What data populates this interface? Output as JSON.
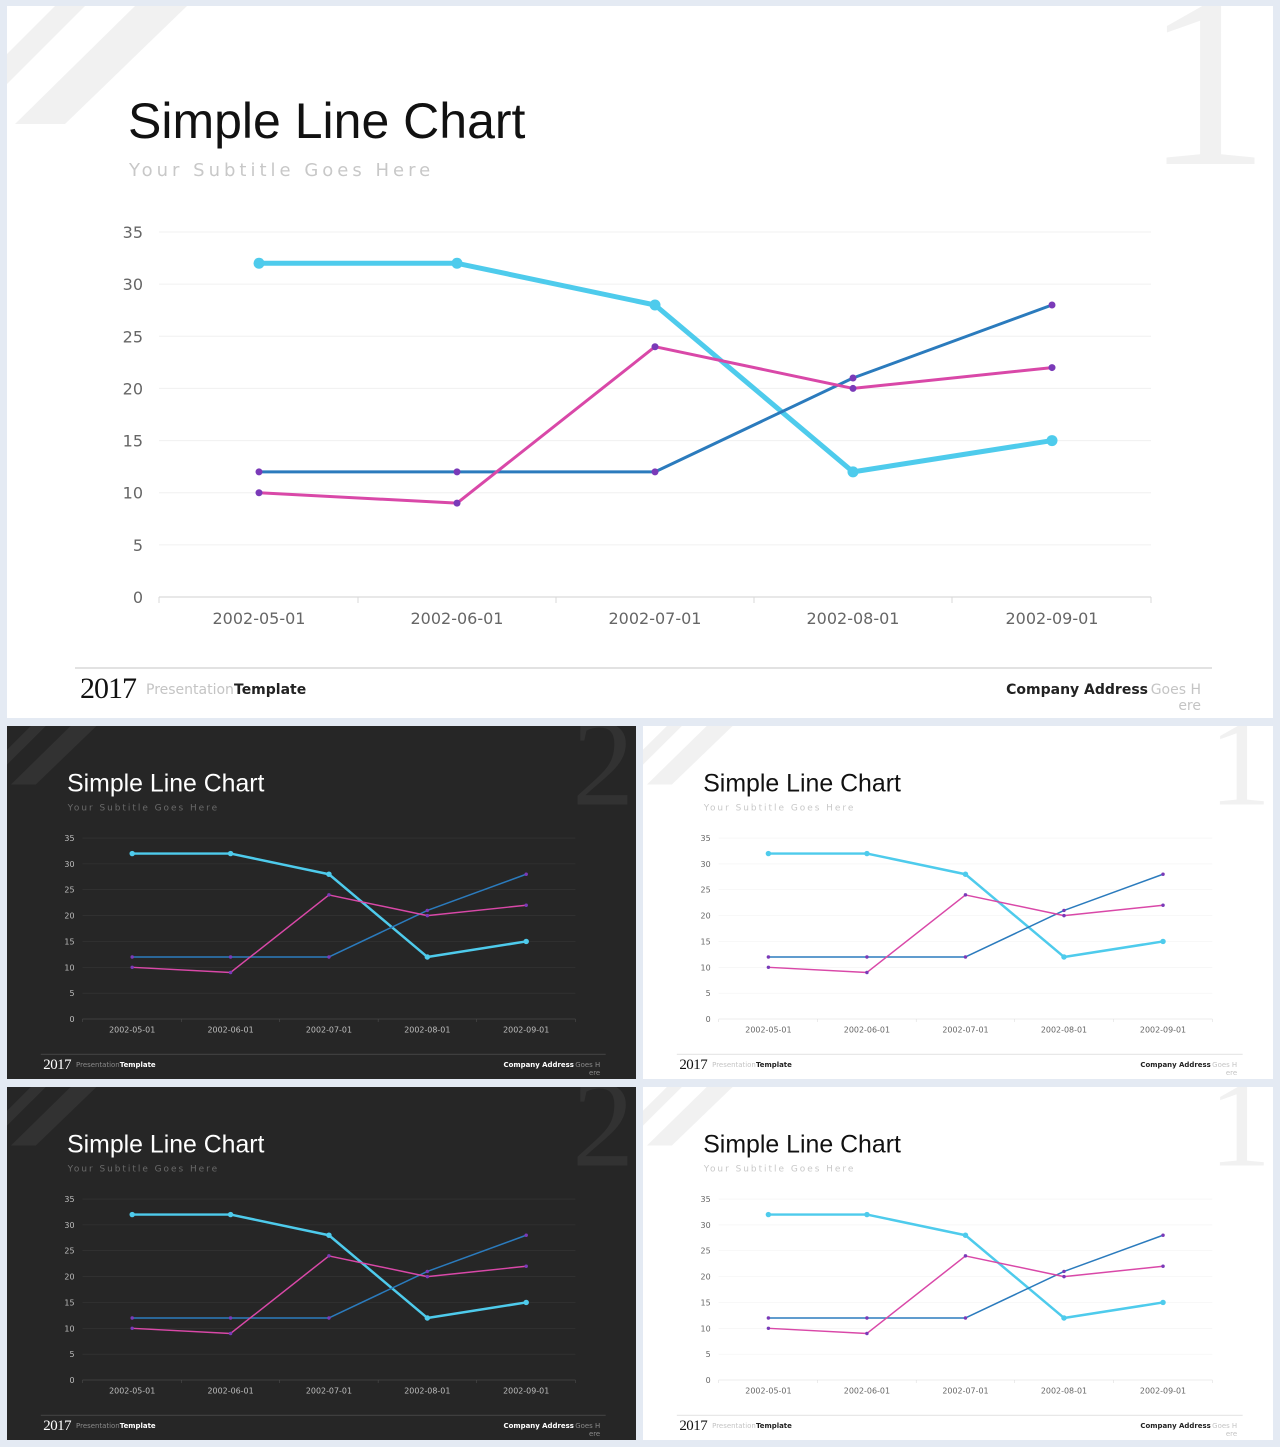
{
  "slides": [
    {
      "theme": "light",
      "num": "1"
    },
    {
      "theme": "dark",
      "num": "2"
    },
    {
      "theme": "light",
      "num": "1"
    },
    {
      "theme": "dark",
      "num": "2"
    },
    {
      "theme": "light",
      "num": "1"
    }
  ],
  "text": {
    "title": "Simple Line Chart",
    "subtitle": "Your Subtitle Goes Here",
    "year": "2017",
    "template_light": "Presentation",
    "template_bold": "Template",
    "address_bold": "Company Address",
    "address_light_1": "Goes H",
    "address_light_2": "ere"
  },
  "colors": {
    "series_cyan": "#4ecbec",
    "series_blue": "#2b7bbd",
    "series_magenta": "#d948a8",
    "marker_purple": "#7a3ab8",
    "dark_bg": "#262626",
    "light_bg": "#ffffff"
  },
  "chart_data": {
    "type": "line",
    "categories": [
      "2002-05-01",
      "2002-06-01",
      "2002-07-01",
      "2002-08-01",
      "2002-09-01"
    ],
    "series": [
      {
        "color": "#4ecbec",
        "values": [
          32,
          32,
          28,
          12,
          15
        ]
      },
      {
        "color": "#2b7bbd",
        "values": [
          12,
          12,
          12,
          21,
          28
        ]
      },
      {
        "color": "#d948a8",
        "values": [
          10,
          9,
          24,
          20,
          22
        ]
      }
    ],
    "y_ticks": [
      0,
      5,
      10,
      15,
      20,
      25,
      30,
      35
    ],
    "ylim": [
      0,
      35
    ],
    "xlabel": "",
    "ylabel": "",
    "grid": true,
    "legend": "none"
  }
}
